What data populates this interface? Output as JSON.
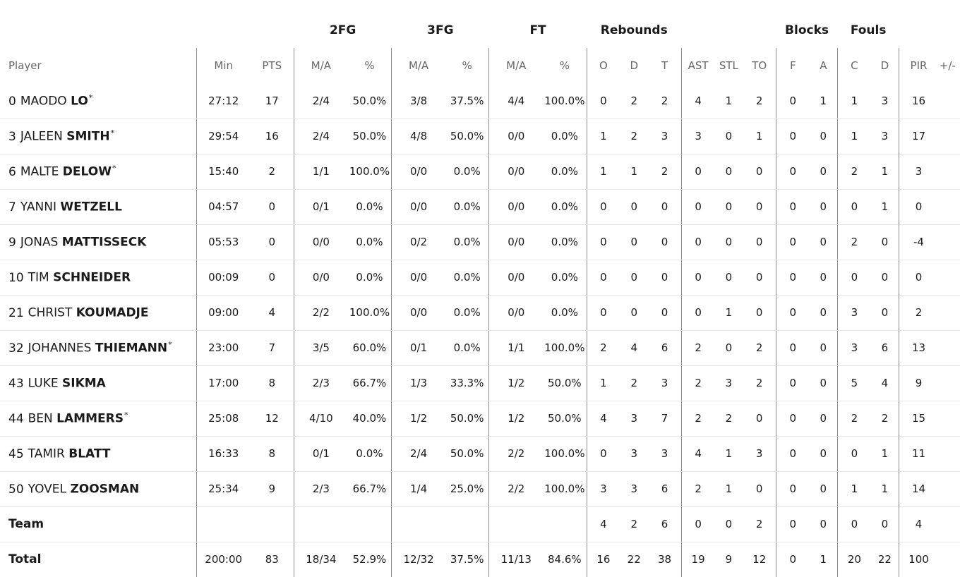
{
  "groups": {
    "fg2": "2FG",
    "fg3": "3FG",
    "ft": "FT",
    "rebounds": "Rebounds",
    "blocks": "Blocks",
    "fouls": "Fouls"
  },
  "columns": {
    "player": "Player",
    "min": "Min",
    "pts": "PTS",
    "fg2_ma": "M/A",
    "fg2_pct": "%",
    "fg3_ma": "M/A",
    "fg3_pct": "%",
    "ft_ma": "M/A",
    "ft_pct": "%",
    "reb_o": "O",
    "reb_d": "D",
    "reb_t": "T",
    "ast": "AST",
    "stl": "STL",
    "to": "TO",
    "blk_f": "F",
    "blk_a": "A",
    "foul_c": "C",
    "foul_d": "D",
    "pir": "PIR",
    "plus_minus": "+/-"
  },
  "players": [
    {
      "number": "0",
      "first": "MAODO",
      "last": "LO",
      "starter": "*",
      "min": "27:12",
      "pts": "17",
      "fg2_ma": "2/4",
      "fg2_pct": "50.0%",
      "fg3_ma": "3/8",
      "fg3_pct": "37.5%",
      "ft_ma": "4/4",
      "ft_pct": "100.0%",
      "reb_o": "0",
      "reb_d": "2",
      "reb_t": "2",
      "ast": "4",
      "stl": "1",
      "to": "2",
      "blk_f": "0",
      "blk_a": "1",
      "foul_c": "1",
      "foul_d": "3",
      "pir": "16"
    },
    {
      "number": "3",
      "first": "JALEEN",
      "last": "SMITH",
      "starter": "*",
      "min": "29:54",
      "pts": "16",
      "fg2_ma": "2/4",
      "fg2_pct": "50.0%",
      "fg3_ma": "4/8",
      "fg3_pct": "50.0%",
      "ft_ma": "0/0",
      "ft_pct": "0.0%",
      "reb_o": "1",
      "reb_d": "2",
      "reb_t": "3",
      "ast": "3",
      "stl": "0",
      "to": "1",
      "blk_f": "0",
      "blk_a": "0",
      "foul_c": "1",
      "foul_d": "3",
      "pir": "17"
    },
    {
      "number": "6",
      "first": "MALTE",
      "last": "DELOW",
      "starter": "*",
      "min": "15:40",
      "pts": "2",
      "fg2_ma": "1/1",
      "fg2_pct": "100.0%",
      "fg3_ma": "0/0",
      "fg3_pct": "0.0%",
      "ft_ma": "0/0",
      "ft_pct": "0.0%",
      "reb_o": "1",
      "reb_d": "1",
      "reb_t": "2",
      "ast": "0",
      "stl": "0",
      "to": "0",
      "blk_f": "0",
      "blk_a": "0",
      "foul_c": "2",
      "foul_d": "1",
      "pir": "3"
    },
    {
      "number": "7",
      "first": "YANNI",
      "last": "WETZELL",
      "starter": "",
      "min": "04:57",
      "pts": "0",
      "fg2_ma": "0/1",
      "fg2_pct": "0.0%",
      "fg3_ma": "0/0",
      "fg3_pct": "0.0%",
      "ft_ma": "0/0",
      "ft_pct": "0.0%",
      "reb_o": "0",
      "reb_d": "0",
      "reb_t": "0",
      "ast": "0",
      "stl": "0",
      "to": "0",
      "blk_f": "0",
      "blk_a": "0",
      "foul_c": "0",
      "foul_d": "1",
      "pir": "0"
    },
    {
      "number": "9",
      "first": "JONAS",
      "last": "MATTISSECK",
      "starter": "",
      "min": "05:53",
      "pts": "0",
      "fg2_ma": "0/0",
      "fg2_pct": "0.0%",
      "fg3_ma": "0/2",
      "fg3_pct": "0.0%",
      "ft_ma": "0/0",
      "ft_pct": "0.0%",
      "reb_o": "0",
      "reb_d": "0",
      "reb_t": "0",
      "ast": "0",
      "stl": "0",
      "to": "0",
      "blk_f": "0",
      "blk_a": "0",
      "foul_c": "2",
      "foul_d": "0",
      "pir": "-4"
    },
    {
      "number": "10",
      "first": "TIM",
      "last": "SCHNEIDER",
      "starter": "",
      "min": "00:09",
      "pts": "0",
      "fg2_ma": "0/0",
      "fg2_pct": "0.0%",
      "fg3_ma": "0/0",
      "fg3_pct": "0.0%",
      "ft_ma": "0/0",
      "ft_pct": "0.0%",
      "reb_o": "0",
      "reb_d": "0",
      "reb_t": "0",
      "ast": "0",
      "stl": "0",
      "to": "0",
      "blk_f": "0",
      "blk_a": "0",
      "foul_c": "0",
      "foul_d": "0",
      "pir": "0"
    },
    {
      "number": "21",
      "first": "CHRIST",
      "last": "KOUMADJE",
      "starter": "",
      "min": "09:00",
      "pts": "4",
      "fg2_ma": "2/2",
      "fg2_pct": "100.0%",
      "fg3_ma": "0/0",
      "fg3_pct": "0.0%",
      "ft_ma": "0/0",
      "ft_pct": "0.0%",
      "reb_o": "0",
      "reb_d": "0",
      "reb_t": "0",
      "ast": "0",
      "stl": "1",
      "to": "0",
      "blk_f": "0",
      "blk_a": "0",
      "foul_c": "3",
      "foul_d": "0",
      "pir": "2"
    },
    {
      "number": "32",
      "first": "JOHANNES",
      "last": "THIEMANN",
      "starter": "*",
      "min": "23:00",
      "pts": "7",
      "fg2_ma": "3/5",
      "fg2_pct": "60.0%",
      "fg3_ma": "0/1",
      "fg3_pct": "0.0%",
      "ft_ma": "1/1",
      "ft_pct": "100.0%",
      "reb_o": "2",
      "reb_d": "4",
      "reb_t": "6",
      "ast": "2",
      "stl": "0",
      "to": "2",
      "blk_f": "0",
      "blk_a": "0",
      "foul_c": "3",
      "foul_d": "6",
      "pir": "13"
    },
    {
      "number": "43",
      "first": "LUKE",
      "last": "SIKMA",
      "starter": "",
      "min": "17:00",
      "pts": "8",
      "fg2_ma": "2/3",
      "fg2_pct": "66.7%",
      "fg3_ma": "1/3",
      "fg3_pct": "33.3%",
      "ft_ma": "1/2",
      "ft_pct": "50.0%",
      "reb_o": "1",
      "reb_d": "2",
      "reb_t": "3",
      "ast": "2",
      "stl": "3",
      "to": "2",
      "blk_f": "0",
      "blk_a": "0",
      "foul_c": "5",
      "foul_d": "4",
      "pir": "9"
    },
    {
      "number": "44",
      "first": "BEN",
      "last": "LAMMERS",
      "starter": "*",
      "min": "25:08",
      "pts": "12",
      "fg2_ma": "4/10",
      "fg2_pct": "40.0%",
      "fg3_ma": "1/2",
      "fg3_pct": "50.0%",
      "ft_ma": "1/2",
      "ft_pct": "50.0%",
      "reb_o": "4",
      "reb_d": "3",
      "reb_t": "7",
      "ast": "2",
      "stl": "2",
      "to": "0",
      "blk_f": "0",
      "blk_a": "0",
      "foul_c": "2",
      "foul_d": "2",
      "pir": "15"
    },
    {
      "number": "45",
      "first": "TAMIR",
      "last": "BLATT",
      "starter": "",
      "min": "16:33",
      "pts": "8",
      "fg2_ma": "0/1",
      "fg2_pct": "0.0%",
      "fg3_ma": "2/4",
      "fg3_pct": "50.0%",
      "ft_ma": "2/2",
      "ft_pct": "100.0%",
      "reb_o": "0",
      "reb_d": "3",
      "reb_t": "3",
      "ast": "4",
      "stl": "1",
      "to": "3",
      "blk_f": "0",
      "blk_a": "0",
      "foul_c": "0",
      "foul_d": "1",
      "pir": "11"
    },
    {
      "number": "50",
      "first": "YOVEL",
      "last": "ZOOSMAN",
      "starter": "",
      "min": "25:34",
      "pts": "9",
      "fg2_ma": "2/3",
      "fg2_pct": "66.7%",
      "fg3_ma": "1/4",
      "fg3_pct": "25.0%",
      "ft_ma": "2/2",
      "ft_pct": "100.0%",
      "reb_o": "3",
      "reb_d": "3",
      "reb_t": "6",
      "ast": "2",
      "stl": "1",
      "to": "0",
      "blk_f": "0",
      "blk_a": "0",
      "foul_c": "1",
      "foul_d": "1",
      "pir": "14"
    }
  ],
  "team": {
    "label": "Team",
    "min": "",
    "pts": "",
    "fg2_ma": "",
    "fg2_pct": "",
    "fg3_ma": "",
    "fg3_pct": "",
    "ft_ma": "",
    "ft_pct": "",
    "reb_o": "4",
    "reb_d": "2",
    "reb_t": "6",
    "ast": "0",
    "stl": "0",
    "to": "2",
    "blk_f": "0",
    "blk_a": "0",
    "foul_c": "0",
    "foul_d": "0",
    "pir": "4"
  },
  "total": {
    "label": "Total",
    "min": "200:00",
    "pts": "83",
    "fg2_ma": "18/34",
    "fg2_pct": "52.9%",
    "fg3_ma": "12/32",
    "fg3_pct": "37.5%",
    "ft_ma": "11/13",
    "ft_pct": "84.6%",
    "reb_o": "16",
    "reb_d": "22",
    "reb_t": "38",
    "ast": "19",
    "stl": "9",
    "to": "12",
    "blk_f": "0",
    "blk_a": "1",
    "foul_c": "20",
    "foul_d": "22",
    "pir": "100"
  }
}
